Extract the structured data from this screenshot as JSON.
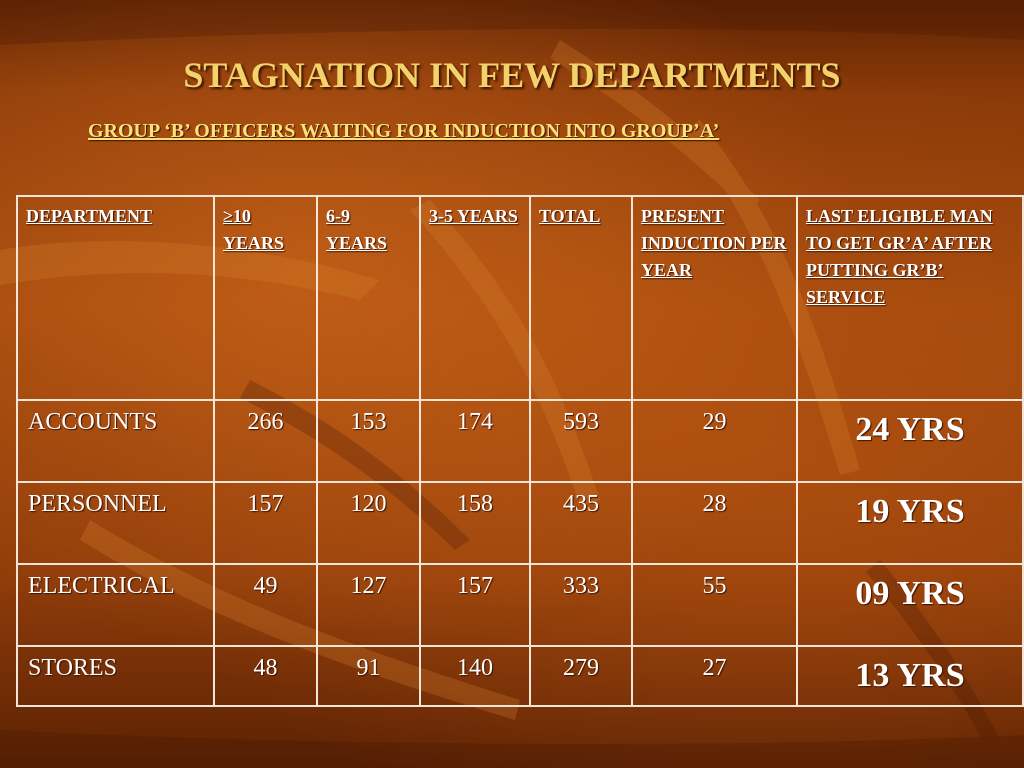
{
  "slide": {
    "title": "STAGNATION IN FEW DEPARTMENTS",
    "subtitle": "GROUP ‘B’ OFFICERS WAITING FOR INDUCTION  INTO GROUP’A’"
  },
  "table": {
    "headers": [
      "DEPARTMENT",
      "≥10 YEARS",
      "6-9 YEARS",
      "3-5 YEARS",
      "TOTAL",
      "PRESENT INDUCTION PER YEAR",
      "LAST ELIGIBLE MAN TO GET GR’A’ AFTER PUTTING GR’B’ SERVICE"
    ],
    "rows": [
      [
        "ACCOUNTS",
        "266",
        "153",
        "174",
        "593",
        "29",
        "24 YRS"
      ],
      [
        "PERSONNEL",
        "157",
        "120",
        "158",
        "435",
        "28",
        "19 YRS"
      ],
      [
        "ELECTRICAL",
        "49",
        "127",
        "157",
        "333",
        "55",
        "09 YRS"
      ],
      [
        "STORES",
        "48",
        "91",
        "140",
        "279",
        "27",
        "13 YRS"
      ]
    ]
  }
}
